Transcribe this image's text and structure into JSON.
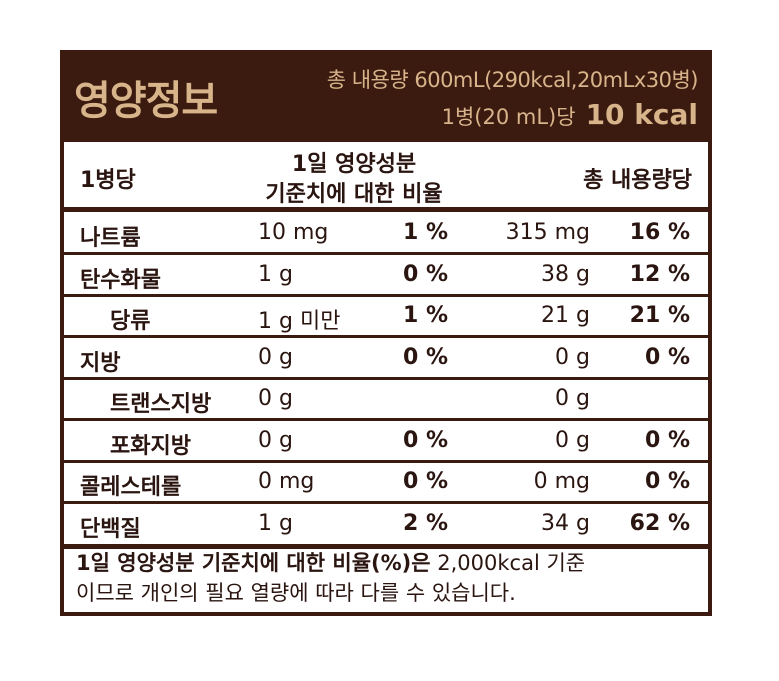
{
  "header": {
    "title": "영양정보",
    "total": "총 내용량 600mL(290kcal,20mLx30병)",
    "per_serving": "1병(20 mL)당",
    "kcal": "10 kcal"
  },
  "table": {
    "headers": [
      "1병당",
      [
        "1일 영양성분",
        "기준치에 대한 비율"
      ],
      "총 내용량당"
    ],
    "rows": [
      [
        "나트륨",
        "10 mg",
        "1 %",
        "315 mg",
        "16 %"
      ],
      [
        "탄수화물",
        "1 g",
        "0 %",
        "38 g",
        "12 %"
      ],
      [
        "당류",
        "1 g 미만",
        "1 %",
        "21 g",
        "21 %"
      ],
      [
        "지방",
        "0 g",
        "0 %",
        "0 g",
        "0 %"
      ],
      [
        "트랜스지방",
        "0 g",
        null,
        "0 g",
        null
      ],
      [
        "포화지방",
        "0 g",
        "0 %",
        "0 g",
        "0 %"
      ],
      [
        "콜레스테롤",
        "0 mg",
        "0 %",
        "0 mg",
        "0 %"
      ],
      [
        "단백질",
        "1 g",
        "2 %",
        "34 g",
        "62 %"
      ]
    ]
  },
  "footnote": [
    "1일 영양성분 기준치에 대한 비율(%)은",
    "2,000kcal 기준",
    "이므로 개인의 필요 열량에 따라 다를 수 있습니다."
  ]
}
